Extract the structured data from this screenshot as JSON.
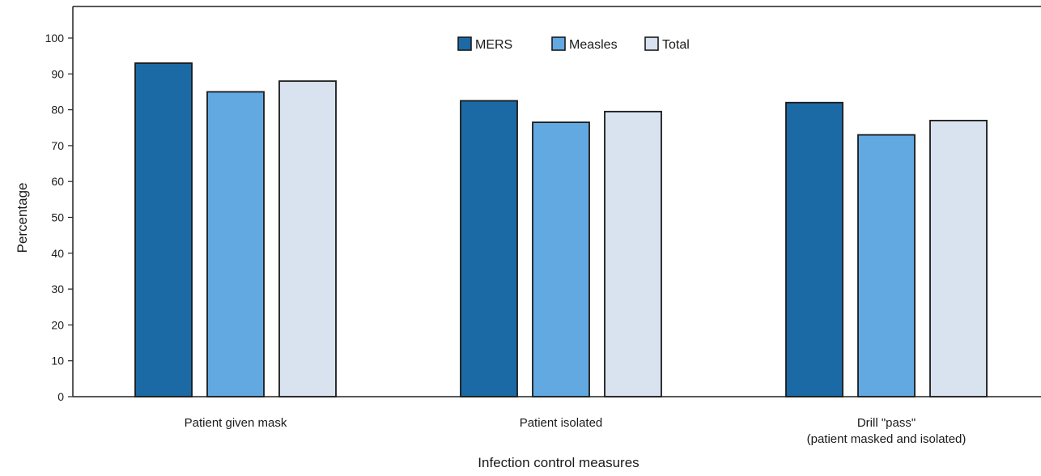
{
  "chart_data": {
    "type": "bar",
    "title": "",
    "xlabel": "Infection control measures",
    "ylabel": "Percentage",
    "ylim": [
      0,
      100
    ],
    "yticks": [
      0,
      10,
      20,
      30,
      40,
      50,
      60,
      70,
      80,
      90,
      100
    ],
    "categories": [
      [
        "Patient given mask"
      ],
      [
        "Patient isolated"
      ],
      [
        "Drill \"pass\"",
        "(patient masked and isolated)"
      ]
    ],
    "series": [
      {
        "name": "MERS",
        "color": "#1b6aa5",
        "values": [
          93,
          82.5,
          82
        ]
      },
      {
        "name": "Measles",
        "color": "#62a9e2",
        "values": [
          85,
          76.5,
          73
        ]
      },
      {
        "name": "Total",
        "color": "#d9e3ef",
        "values": [
          88,
          79.5,
          77
        ]
      }
    ],
    "legend_position": "top-center",
    "grid": false
  }
}
